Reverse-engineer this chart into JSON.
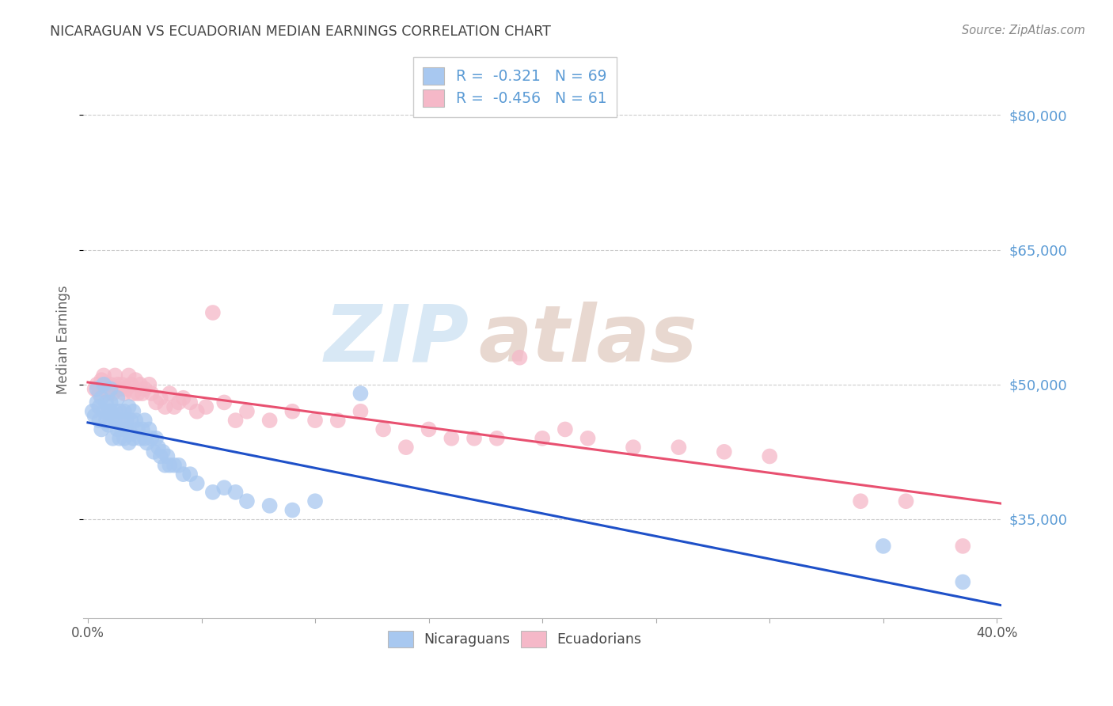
{
  "title": "NICARAGUAN VS ECUADORIAN MEDIAN EARNINGS CORRELATION CHART",
  "source": "Source: ZipAtlas.com",
  "ylabel": "Median Earnings",
  "xlim": [
    -0.002,
    0.402
  ],
  "ylim": [
    24000,
    86000
  ],
  "xticks": [
    0.0,
    0.05,
    0.1,
    0.15,
    0.2,
    0.25,
    0.3,
    0.35,
    0.4
  ],
  "xtick_labels": [
    "0.0%",
    "",
    "",
    "",
    "",
    "",
    "",
    "",
    "40.0%"
  ],
  "ytick_labels_right": [
    "$35,000",
    "$50,000",
    "$65,000",
    "$80,000"
  ],
  "yticks_right": [
    35000,
    50000,
    65000,
    80000
  ],
  "blue_color": "#A8C8F0",
  "pink_color": "#F5B8C8",
  "line_blue_color": "#1E50C8",
  "line_pink_color": "#E85070",
  "title_color": "#444444",
  "right_label_color": "#5B9BD5",
  "background_color": "#FFFFFF",
  "grid_color": "#CCCCCC",
  "watermark_zip_color": "#D8E8F5",
  "watermark_atlas_color": "#E8D8D0",
  "nicaraguan_x": [
    0.002,
    0.003,
    0.004,
    0.004,
    0.005,
    0.005,
    0.006,
    0.006,
    0.007,
    0.007,
    0.008,
    0.008,
    0.009,
    0.009,
    0.01,
    0.01,
    0.01,
    0.011,
    0.011,
    0.012,
    0.012,
    0.013,
    0.013,
    0.014,
    0.014,
    0.015,
    0.015,
    0.016,
    0.016,
    0.017,
    0.017,
    0.018,
    0.018,
    0.019,
    0.019,
    0.02,
    0.02,
    0.021,
    0.022,
    0.023,
    0.024,
    0.025,
    0.025,
    0.026,
    0.027,
    0.028,
    0.029,
    0.03,
    0.031,
    0.032,
    0.033,
    0.034,
    0.035,
    0.036,
    0.038,
    0.04,
    0.042,
    0.045,
    0.048,
    0.055,
    0.06,
    0.065,
    0.07,
    0.08,
    0.09,
    0.1,
    0.12,
    0.35,
    0.385
  ],
  "nicaraguan_y": [
    47000,
    46500,
    48000,
    49500,
    47500,
    46000,
    48500,
    45000,
    50000,
    47000,
    46000,
    48000,
    47000,
    45500,
    49500,
    48000,
    47000,
    46500,
    44000,
    47000,
    46000,
    48500,
    45000,
    47000,
    44000,
    46000,
    45000,
    47000,
    44000,
    46000,
    45000,
    47500,
    43500,
    46000,
    44500,
    47000,
    44000,
    46000,
    45000,
    44000,
    45000,
    46000,
    44000,
    43500,
    45000,
    44000,
    42500,
    44000,
    43000,
    42000,
    42500,
    41000,
    42000,
    41000,
    41000,
    41000,
    40000,
    40000,
    39000,
    38000,
    38500,
    38000,
    37000,
    36500,
    36000,
    37000,
    49000,
    32000,
    28000
  ],
  "ecuadorian_x": [
    0.003,
    0.004,
    0.005,
    0.006,
    0.007,
    0.008,
    0.009,
    0.01,
    0.011,
    0.012,
    0.013,
    0.014,
    0.015,
    0.016,
    0.017,
    0.018,
    0.019,
    0.02,
    0.021,
    0.022,
    0.023,
    0.024,
    0.025,
    0.027,
    0.028,
    0.03,
    0.032,
    0.034,
    0.036,
    0.038,
    0.04,
    0.042,
    0.045,
    0.048,
    0.052,
    0.055,
    0.06,
    0.065,
    0.07,
    0.08,
    0.09,
    0.1,
    0.11,
    0.12,
    0.13,
    0.14,
    0.15,
    0.16,
    0.17,
    0.18,
    0.19,
    0.2,
    0.21,
    0.22,
    0.24,
    0.26,
    0.28,
    0.3,
    0.34,
    0.36,
    0.385
  ],
  "ecuadorian_y": [
    49500,
    50000,
    49000,
    50500,
    51000,
    50000,
    49000,
    50000,
    49000,
    51000,
    50000,
    49500,
    50000,
    49000,
    49500,
    51000,
    50000,
    49000,
    50500,
    49000,
    50000,
    49000,
    49500,
    50000,
    49000,
    48000,
    48500,
    47500,
    49000,
    47500,
    48000,
    48500,
    48000,
    47000,
    47500,
    58000,
    48000,
    46000,
    47000,
    46000,
    47000,
    46000,
    46000,
    47000,
    45000,
    43000,
    45000,
    44000,
    44000,
    44000,
    53000,
    44000,
    45000,
    44000,
    43000,
    43000,
    42500,
    42000,
    37000,
    37000,
    32000
  ]
}
